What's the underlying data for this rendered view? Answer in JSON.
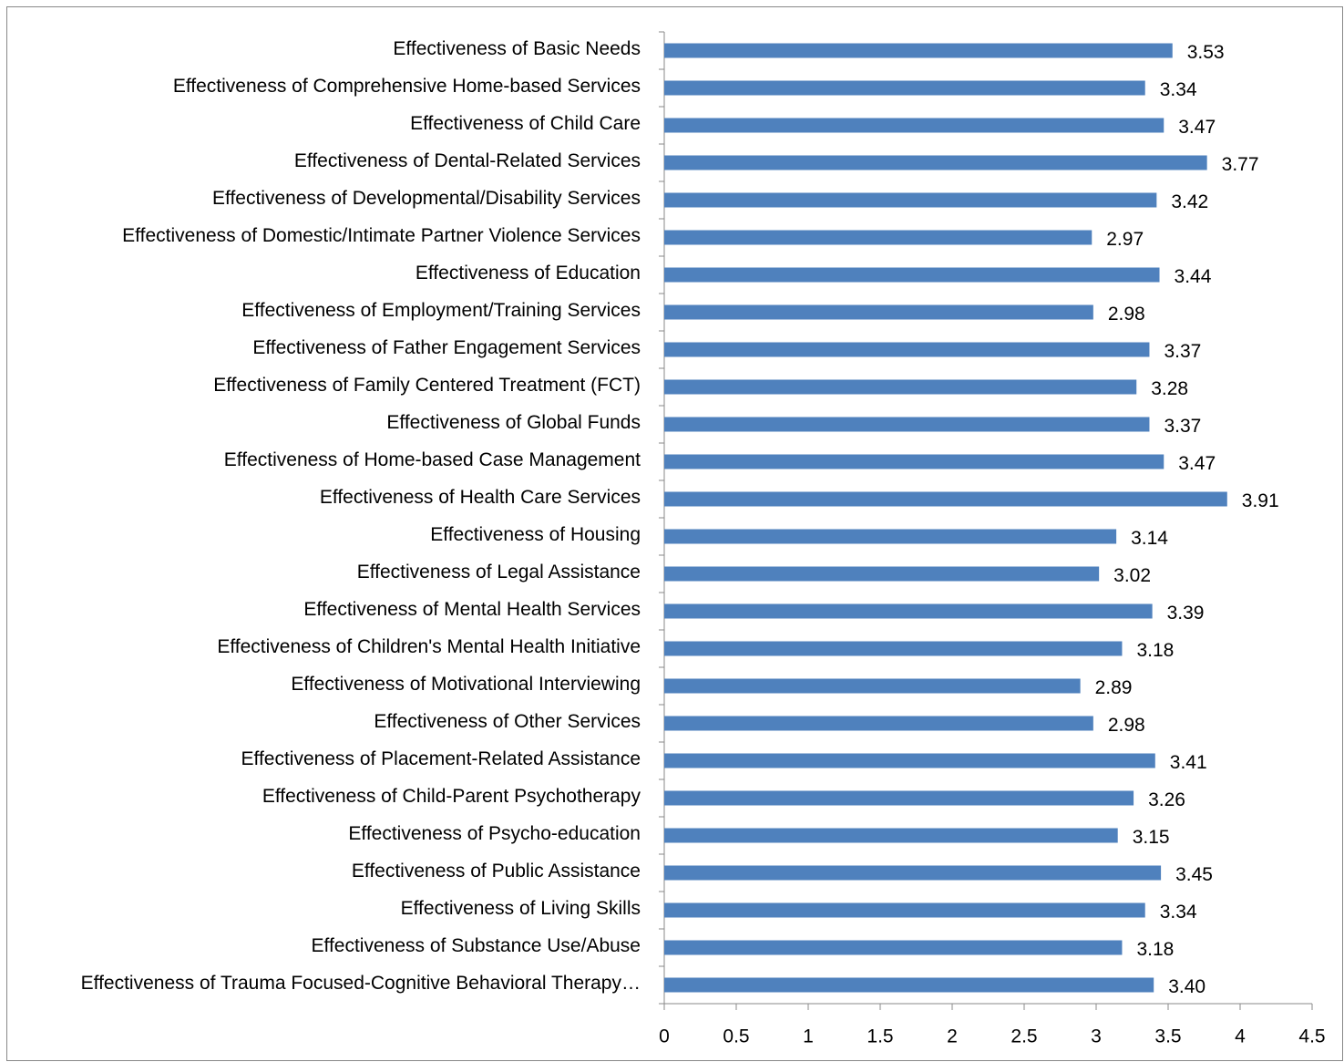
{
  "chart_data": {
    "type": "bar",
    "orientation": "horizontal",
    "color": "#4f81bd",
    "categories": [
      "Effectiveness of Basic Needs",
      "Effectiveness of Comprehensive Home-based Services",
      "Effectiveness of Child Care",
      "Effectiveness of Dental-Related Services",
      "Effectiveness of Developmental/Disability Services",
      "Effectiveness of Domestic/Intimate Partner Violence Services",
      "Effectiveness of Education",
      "Effectiveness of Employment/Training Services",
      "Effectiveness of Father Engagement Services",
      "Effectiveness of Family Centered Treatment (FCT)",
      "Effectiveness of Global Funds",
      "Effectiveness of Home-based Case Management",
      "Effectiveness of Health Care Services",
      "Effectiveness of Housing",
      "Effectiveness of Legal Assistance",
      "Effectiveness of Mental Health Services",
      "Effectiveness of Children's Mental Health Initiative",
      "Effectiveness of Motivational Interviewing",
      "Effectiveness of Other Services",
      "Effectiveness of Placement-Related Assistance",
      "Effectiveness of Child-Parent Psychotherapy",
      "Effectiveness of Psycho-education",
      "Effectiveness of Public Assistance",
      "Effectiveness of Living Skills",
      "Effectiveness of Substance Use/Abuse",
      "Effectiveness of Trauma Focused-Cognitive Behavioral Therapy…"
    ],
    "values": [
      3.53,
      3.34,
      3.47,
      3.77,
      3.42,
      2.97,
      3.44,
      2.98,
      3.37,
      3.28,
      3.37,
      3.47,
      3.91,
      3.14,
      3.02,
      3.39,
      3.18,
      2.89,
      2.98,
      3.41,
      3.26,
      3.15,
      3.45,
      3.34,
      3.18,
      3.4
    ],
    "value_labels": [
      "3.53",
      "3.34",
      "3.47",
      "3.77",
      "3.42",
      "2.97",
      "3.44",
      "2.98",
      "3.37",
      "3.28",
      "3.37",
      "3.47",
      "3.91",
      "3.14",
      "3.02",
      "3.39",
      "3.18",
      "2.89",
      "2.98",
      "3.41",
      "3.26",
      "3.15",
      "3.45",
      "3.34",
      "3.18",
      "3.40"
    ],
    "xlim": [
      0,
      4.5
    ],
    "xticks": [
      0,
      0.5,
      1,
      1.5,
      2,
      2.5,
      3,
      3.5,
      4,
      4.5
    ],
    "grid": false
  }
}
